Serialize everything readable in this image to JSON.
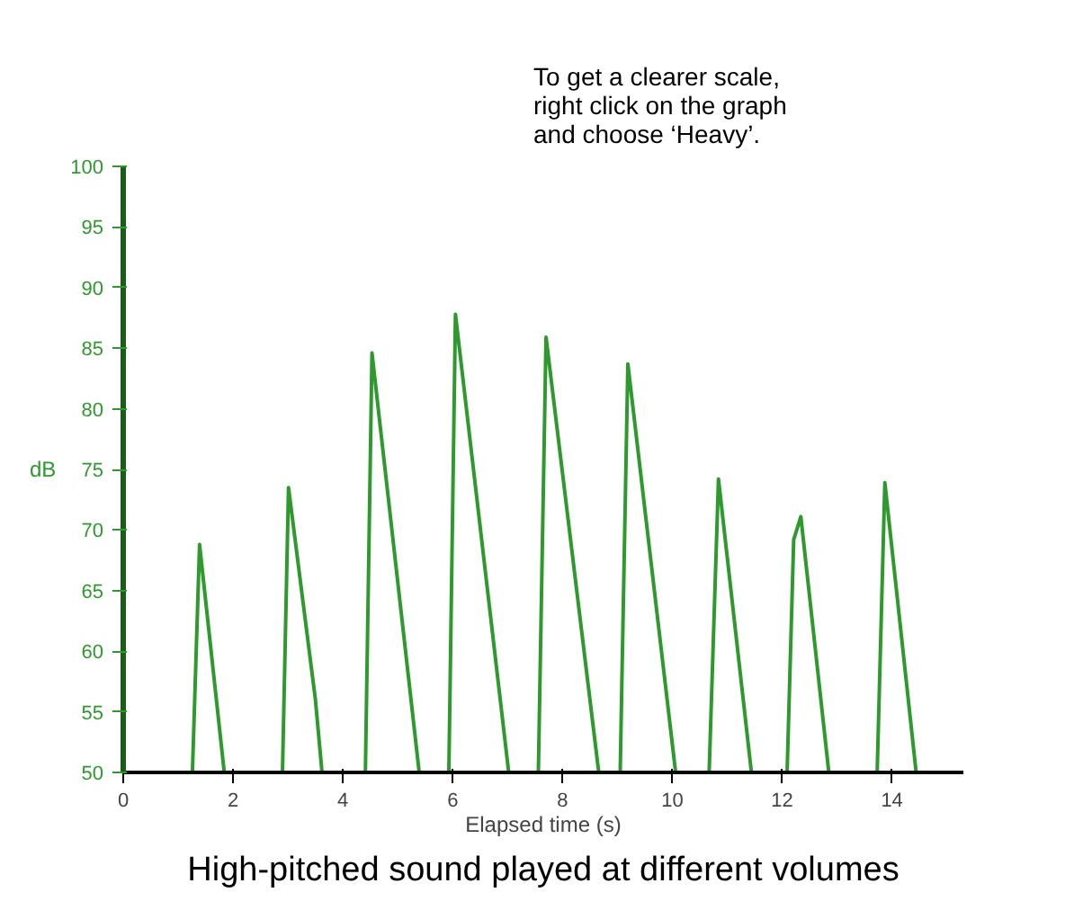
{
  "chart_data": {
    "type": "line",
    "xlabel": "Elapsed time (s)",
    "ylabel": "dB",
    "xlim": [
      0,
      15.3
    ],
    "xticks": [
      0,
      2,
      4,
      6,
      8,
      10,
      12,
      14
    ],
    "ylim": [
      50,
      100
    ],
    "yticks": [
      50,
      55,
      60,
      65,
      70,
      75,
      80,
      85,
      90,
      95,
      100
    ],
    "grid": false,
    "marker": "none",
    "line_style": "solid",
    "series": [
      {
        "color": "#2e9a2e",
        "x": [
          0,
          1.26,
          1.39,
          1.84,
          2.9,
          3.01,
          3.5,
          3.62,
          4.41,
          4.53,
          5.39,
          5.93,
          6.05,
          7.02,
          7.56,
          7.7,
          8.66,
          9.05,
          9.19,
          10.06,
          10.67,
          10.84,
          11.44,
          12.09,
          12.21,
          12.34,
          12.85,
          13.73,
          13.87,
          14.44
        ],
        "values": [
          50,
          50,
          68.8,
          50,
          50,
          73.5,
          56,
          50,
          50,
          84.6,
          50,
          50,
          87.8,
          50,
          50,
          85.9,
          50,
          50,
          83.7,
          50,
          50,
          74.2,
          50,
          50,
          69.2,
          71.1,
          50,
          50,
          73.9,
          50
        ]
      }
    ],
    "annotations": [
      "To get a clearer scale,\nright click on the graph\nand choose ‘Heavy’.",
      "High-pitched sound played at different volumes"
    ]
  }
}
